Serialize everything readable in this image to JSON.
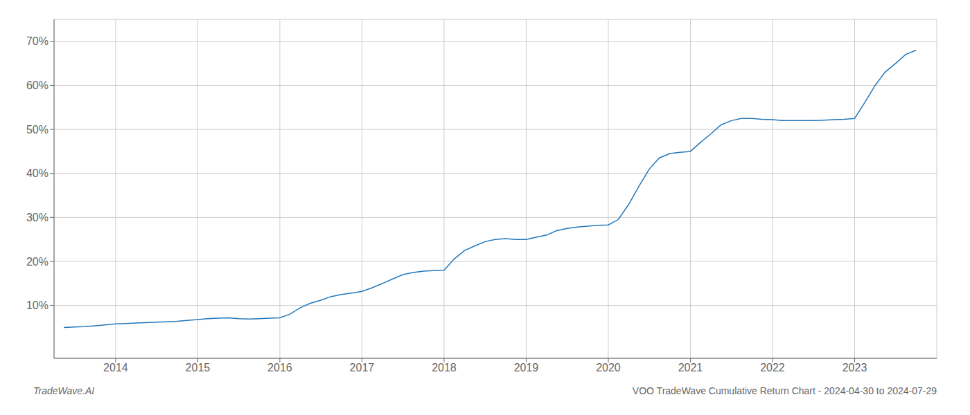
{
  "chart_data": {
    "type": "line",
    "title": "VOO TradeWave Cumulative Return Chart - 2024-04-30 to 2024-07-29",
    "annotations": [
      "TradeWave.AI"
    ],
    "color": "#2277bb",
    "grid": true,
    "x": [
      2013.37,
      2013.5,
      2013.62,
      2013.75,
      2013.87,
      2014.0,
      2014.12,
      2014.25,
      2014.37,
      2014.5,
      2014.62,
      2014.75,
      2014.87,
      2015.0,
      2015.12,
      2015.25,
      2015.37,
      2015.5,
      2015.62,
      2015.75,
      2015.87,
      2016.0,
      2016.12,
      2016.25,
      2016.37,
      2016.5,
      2016.62,
      2016.75,
      2016.87,
      2017.0,
      2017.12,
      2017.25,
      2017.37,
      2017.5,
      2017.62,
      2017.75,
      2017.87,
      2018.0,
      2018.12,
      2018.25,
      2018.37,
      2018.5,
      2018.62,
      2018.75,
      2018.87,
      2019.0,
      2019.12,
      2019.25,
      2019.37,
      2019.5,
      2019.62,
      2019.75,
      2019.87,
      2020.0,
      2020.12,
      2020.25,
      2020.37,
      2020.5,
      2020.62,
      2020.75,
      2020.87,
      2021.0,
      2021.12,
      2021.25,
      2021.37,
      2021.5,
      2021.62,
      2021.75,
      2021.87,
      2022.0,
      2022.12,
      2022.25,
      2022.37,
      2022.5,
      2022.62,
      2022.75,
      2022.87,
      2023.0,
      2023.12,
      2023.25,
      2023.37,
      2023.5,
      2023.62,
      2023.75
    ],
    "values": [
      5.0,
      5.1,
      5.2,
      5.4,
      5.6,
      5.8,
      5.9,
      6.0,
      6.1,
      6.2,
      6.3,
      6.4,
      6.6,
      6.8,
      7.0,
      7.1,
      7.2,
      7.0,
      6.9,
      7.0,
      7.1,
      7.2,
      8.0,
      9.5,
      10.5,
      11.2,
      12.0,
      12.5,
      12.8,
      13.2,
      14.0,
      15.0,
      16.0,
      17.0,
      17.5,
      17.8,
      17.9,
      18.0,
      20.5,
      22.5,
      23.5,
      24.5,
      25.0,
      25.2,
      25.0,
      25.0,
      25.5,
      26.0,
      27.0,
      27.5,
      27.8,
      28.0,
      28.2,
      28.3,
      29.5,
      33.0,
      37.0,
      41.0,
      43.5,
      44.5,
      44.8,
      45.0,
      47.0,
      49.0,
      51.0,
      52.0,
      52.5,
      52.5,
      52.3,
      52.2,
      52.0,
      52.0,
      52.0,
      52.0,
      52.1,
      52.2,
      52.3,
      52.5,
      56.0,
      60.0,
      63.0,
      65.0,
      67.0,
      68.0
    ],
    "xlim": [
      2013.25,
      2024.0
    ],
    "ylim": [
      -2,
      75
    ],
    "xticks": [
      2014,
      2015,
      2016,
      2017,
      2018,
      2019,
      2020,
      2021,
      2022,
      2023
    ],
    "yticks": [
      {
        "value": 10,
        "label": "10%"
      },
      {
        "value": 20,
        "label": "20%"
      },
      {
        "value": 30,
        "label": "30%"
      },
      {
        "value": 40,
        "label": "40%"
      },
      {
        "value": 50,
        "label": "50%"
      },
      {
        "value": 60,
        "label": "60%"
      },
      {
        "value": 70,
        "label": "70%"
      }
    ]
  }
}
